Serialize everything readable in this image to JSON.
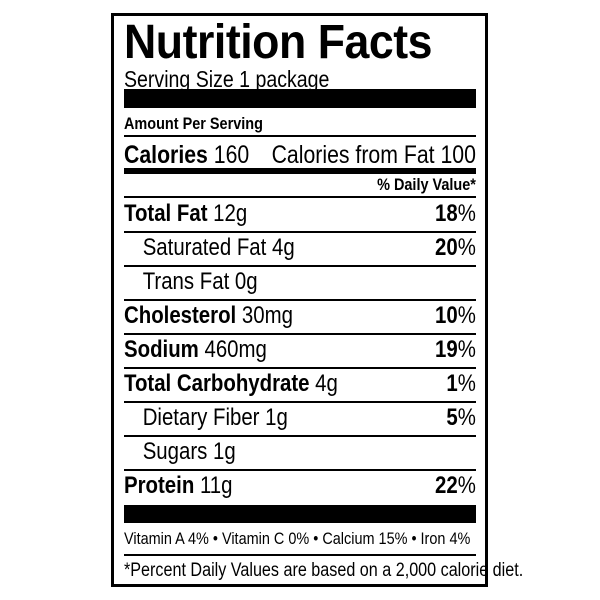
{
  "title": "Nutrition Facts",
  "serving_size": "Serving Size 1 package",
  "amount_per_serving": "Amount Per Serving",
  "calories": {
    "label": "Calories",
    "value": "160",
    "from_fat": "Calories from Fat 100"
  },
  "daily_value_header": "% Daily Value*",
  "nutrients": [
    {
      "name": "Total Fat",
      "amount": "12g",
      "dv": "18",
      "bold": true
    },
    {
      "name": "Saturated Fat",
      "amount": "4g",
      "dv": "20",
      "bold": false
    },
    {
      "name": "Trans Fat",
      "amount": "0g",
      "dv": "",
      "bold": false
    },
    {
      "name": "Cholesterol",
      "amount": "30mg",
      "dv": "10",
      "bold": true
    },
    {
      "name": "Sodium",
      "amount": "460mg",
      "dv": "19",
      "bold": true
    },
    {
      "name": "Total Carbohydrate",
      "amount": "4g",
      "dv": "1",
      "bold": true
    },
    {
      "name": "Dietary Fiber",
      "amount": "1g",
      "dv": "5",
      "bold": false
    },
    {
      "name": "Sugars",
      "amount": "1g",
      "dv": "",
      "bold": false
    },
    {
      "name": "Protein",
      "amount": "11g",
      "dv": "22",
      "bold": true
    }
  ],
  "percent_sign": "%",
  "vitamins": "Vitamin A 4% • Vitamin C 0% • Calcium 15% • Iron 4%",
  "footnote": "*Percent Daily Values are based on a 2,000 calorie diet."
}
